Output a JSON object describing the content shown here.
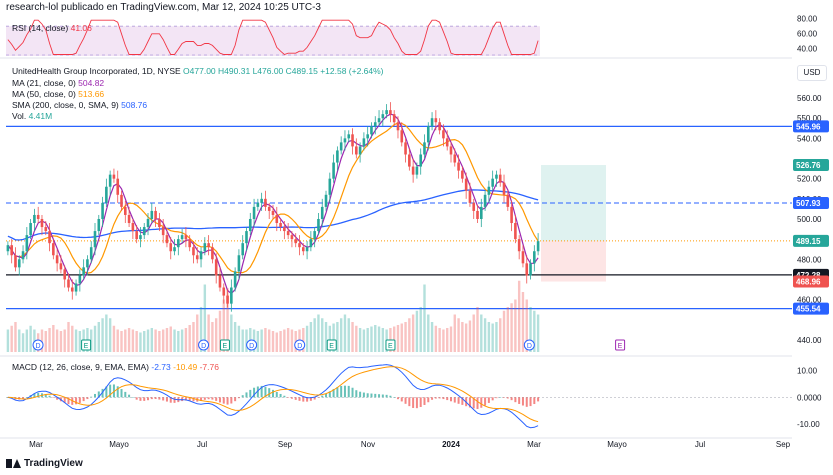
{
  "header": {
    "text": "research-lol publicado en TradingView.com, Mar 12, 2024 10:25 UTC-3"
  },
  "brand": "TradingView",
  "currency": "USD",
  "colors": {
    "up": "#26a69a",
    "down": "#ef5350",
    "ma21": "#9c27b0",
    "ma50": "#ff9800",
    "sma200": "#2962ff",
    "rsi": "#f23645",
    "rsi_band": "#f3e5f5",
    "macd": "#2962ff",
    "signal": "#ff9800",
    "hline": "#2962ff",
    "support": "#131722"
  },
  "legend": {
    "rsi": {
      "label": "RSI (14, close)",
      "value": "41.06"
    },
    "ticker": {
      "name": "UnitedHealth Group Incorporated, 1D, NYSE",
      "o": "O477.00",
      "h": "H490.31",
      "l": "L476.00",
      "c": "C489.15",
      "chg": "+12.58 (+2.64%)"
    },
    "ma21": {
      "label": "MA (21, close, 0)",
      "value": "504.82"
    },
    "ma50": {
      "label": "MA (50, close, 0)",
      "value": "513.66"
    },
    "sma200": {
      "label": "SMA (200, close, 0, SMA, 9)",
      "value": "508.76"
    },
    "vol": {
      "label": "Vol.",
      "value": "4.41M"
    },
    "macd": {
      "label": "MACD (12, 26, close, 9, EMA, EMA)",
      "v1": "-2.73",
      "v2": "-10.49",
      "v3": "-7.76"
    }
  },
  "chart_data": {
    "type": "candlestick",
    "price_axis": {
      "ticks": [
        440,
        460,
        480,
        500,
        510,
        520,
        540,
        550,
        560
      ],
      "min": 435,
      "max": 563
    },
    "price_tags": [
      {
        "value": 545.96,
        "label": "545.96",
        "color": "#2962ff"
      },
      {
        "value": 526.76,
        "label": "526.76",
        "color": "#26a69a"
      },
      {
        "value": 507.93,
        "label": "507.93",
        "color": "#2962ff"
      },
      {
        "value": 489.15,
        "label": "489.15",
        "color": "#26a69a"
      },
      {
        "value": 472.28,
        "label": "472.28",
        "color": "#131722"
      },
      {
        "value": 468.96,
        "label": "468.96",
        "color": "#ef5350"
      },
      {
        "value": 455.54,
        "label": "455.54",
        "color": "#2962ff"
      }
    ],
    "horizontal_lines": [
      {
        "value": 545.96,
        "style": "solid",
        "color": "#2962ff"
      },
      {
        "value": 507.93,
        "style": "dashed",
        "color": "#2962ff"
      },
      {
        "value": 472.28,
        "style": "solid",
        "color": "#131722"
      },
      {
        "value": 455.54,
        "style": "solid",
        "color": "#2962ff"
      },
      {
        "value": 489.15,
        "style": "dotted",
        "color": "#ff9800"
      }
    ],
    "position_box": {
      "entry": 489.15,
      "target": 526.76,
      "stop": 468.96
    },
    "x_axis_labels": [
      "Mar",
      "Mayo",
      "Jul",
      "Sep",
      "Nov",
      "2024",
      "Mar",
      "Mayo",
      "Jul",
      "Sep"
    ],
    "x_axis_months": [
      0,
      2,
      4,
      6,
      8,
      10,
      12,
      14,
      16,
      18
    ],
    "x_axis_bold": [
      5
    ],
    "closes": [
      487,
      482,
      476,
      480,
      484,
      492,
      498,
      502,
      500,
      496,
      494,
      488,
      482,
      478,
      475,
      470,
      466,
      464,
      468,
      472,
      476,
      480,
      486,
      494,
      500,
      508,
      516,
      522,
      520,
      512,
      506,
      502,
      498,
      494,
      490,
      492,
      496,
      500,
      504,
      500,
      496,
      492,
      488,
      484,
      486,
      490,
      492,
      490,
      486,
      482,
      480,
      484,
      488,
      486,
      480,
      472,
      466,
      462,
      458,
      466,
      474,
      482,
      488,
      494,
      500,
      506,
      508,
      510,
      506,
      504,
      502,
      498,
      496,
      494,
      492,
      490,
      488,
      486,
      484,
      486,
      490,
      494,
      500,
      506,
      512,
      520,
      528,
      534,
      538,
      540,
      542,
      536,
      532,
      536,
      540,
      542,
      546,
      548,
      550,
      552,
      554,
      552,
      548,
      544,
      538,
      532,
      526,
      522,
      526,
      532,
      538,
      546,
      550,
      548,
      544,
      540,
      536,
      532,
      528,
      524,
      520,
      514,
      508,
      504,
      500,
      506,
      512,
      516,
      520,
      522,
      518,
      512,
      506,
      498,
      490,
      484,
      478,
      472,
      478,
      484,
      489
    ],
    "volume": [
      0.3,
      0.35,
      0.4,
      0.3,
      0.25,
      0.3,
      0.35,
      0.3,
      0.25,
      0.3,
      0.28,
      0.32,
      0.36,
      0.3,
      0.28,
      0.3,
      0.4,
      0.35,
      0.3,
      0.28,
      0.3,
      0.32,
      0.3,
      0.35,
      0.4,
      0.45,
      0.5,
      0.45,
      0.35,
      0.3,
      0.28,
      0.3,
      0.32,
      0.3,
      0.28,
      0.26,
      0.28,
      0.3,
      0.32,
      0.3,
      0.28,
      0.3,
      0.32,
      0.34,
      0.3,
      0.28,
      0.3,
      0.32,
      0.36,
      0.4,
      0.5,
      0.6,
      0.9,
      0.5,
      0.4,
      0.45,
      0.55,
      0.7,
      0.85,
      0.5,
      0.4,
      0.35,
      0.3,
      0.3,
      0.32,
      0.3,
      0.28,
      0.3,
      0.32,
      0.3,
      0.28,
      0.26,
      0.28,
      0.3,
      0.32,
      0.3,
      0.28,
      0.3,
      0.32,
      0.35,
      0.4,
      0.45,
      0.5,
      0.45,
      0.4,
      0.35,
      0.38,
      0.4,
      0.45,
      0.5,
      0.45,
      0.4,
      0.35,
      0.32,
      0.3,
      0.32,
      0.34,
      0.36,
      0.34,
      0.32,
      0.3,
      0.32,
      0.34,
      0.36,
      0.38,
      0.4,
      0.45,
      0.5,
      0.55,
      0.6,
      0.9,
      0.5,
      0.4,
      0.35,
      0.32,
      0.3,
      0.32,
      0.34,
      0.5,
      0.45,
      0.4,
      0.38,
      0.42,
      0.5,
      0.6,
      0.5,
      0.45,
      0.4,
      0.38,
      0.4,
      0.45,
      0.55,
      0.6,
      0.65,
      0.7,
      0.95,
      0.8,
      0.7,
      0.6,
      0.55,
      0.5
    ],
    "rsi_axis": {
      "ticks": [
        40,
        60,
        80
      ],
      "min": 30,
      "max": 85
    },
    "macd_axis": {
      "ticks": [
        10,
        0,
        -10
      ],
      "labels": [
        "10.00",
        "0.0000",
        "-10.00"
      ],
      "min": -13,
      "max": 14
    },
    "event_markers": {
      "dividends": [
        0.06,
        0.37,
        0.46,
        0.55,
        0.98
      ],
      "earnings": [
        0.15,
        0.41,
        0.61,
        0.72,
        1.15
      ]
    }
  }
}
